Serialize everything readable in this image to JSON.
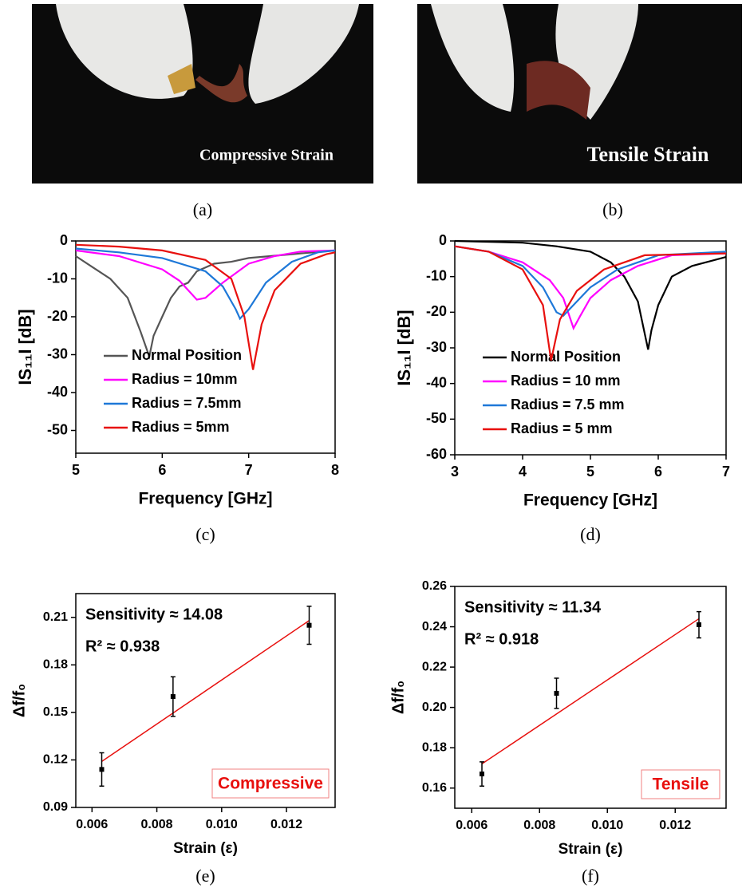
{
  "photos": [
    {
      "label": "Compressive Strain",
      "caption": "(a)"
    },
    {
      "label": "Tensile Strain",
      "caption": "(b)"
    }
  ],
  "chart_data": [
    {
      "type": "line",
      "caption": "(c)",
      "xlabel": "Frequency [GHz]",
      "ylabel": "IS₁₁I [dB]",
      "xlim": [
        5,
        8
      ],
      "xticks": [
        5,
        6,
        7,
        8
      ],
      "ylim": [
        -56,
        0
      ],
      "yticks": [
        0,
        -10,
        -20,
        -30,
        -40,
        -50
      ],
      "legend": "lower left",
      "series": [
        {
          "name": "Normal Position",
          "color": "#555555",
          "x": [
            5,
            5.2,
            5.4,
            5.6,
            5.75,
            5.85,
            5.9,
            6.0,
            6.1,
            6.2,
            6.3,
            6.4,
            6.6,
            6.8,
            7.0,
            7.5,
            8
          ],
          "values": [
            -4,
            -7,
            -10,
            -15,
            -24,
            -30.5,
            -25,
            -20,
            -15,
            -12,
            -11,
            -8,
            -6,
            -5.5,
            -4.5,
            -3.5,
            -2.5
          ]
        },
        {
          "name": "Radius = 10mm",
          "color": "#ff00ff",
          "x": [
            5,
            5.5,
            6.0,
            6.2,
            6.4,
            6.5,
            6.7,
            7.0,
            7.3,
            7.6,
            8
          ],
          "values": [
            -2.5,
            -4,
            -7.5,
            -10.5,
            -15.5,
            -15,
            -11,
            -6,
            -4,
            -2.8,
            -2.5
          ]
        },
        {
          "name": "Radius = 7.5mm",
          "color": "#1e78d8",
          "x": [
            5,
            5.5,
            6.0,
            6.5,
            6.7,
            6.85,
            6.9,
            7.0,
            7.2,
            7.5,
            7.8,
            8
          ],
          "values": [
            -2,
            -3,
            -4.5,
            -8,
            -12,
            -18,
            -20.5,
            -18,
            -11,
            -5.5,
            -3,
            -2.5
          ]
        },
        {
          "name": "Radius = 5mm",
          "color": "#e8100e",
          "x": [
            5,
            5.5,
            6.0,
            6.5,
            6.8,
            6.95,
            7.05,
            7.15,
            7.3,
            7.6,
            7.9,
            8
          ],
          "values": [
            -1,
            -1.5,
            -2.5,
            -5,
            -10,
            -20,
            -34,
            -22,
            -13,
            -6,
            -3.5,
            -3
          ]
        }
      ]
    },
    {
      "type": "line",
      "caption": "(d)",
      "xlabel": "Frequency [GHz]",
      "ylabel": "IS₁₁I [dB]",
      "xlim": [
        3,
        7
      ],
      "xticks": [
        3,
        4,
        5,
        6,
        7
      ],
      "ylim": [
        -60,
        0
      ],
      "yticks": [
        0,
        -10,
        -20,
        -30,
        -40,
        -50,
        -60
      ],
      "legend": "lower left",
      "series": [
        {
          "name": "Normal Position",
          "color": "#000000",
          "x": [
            3,
            4,
            4.5,
            5.0,
            5.3,
            5.5,
            5.7,
            5.85,
            5.9,
            6.0,
            6.2,
            6.5,
            7
          ],
          "values": [
            0,
            -0.5,
            -1.5,
            -3,
            -6,
            -10,
            -17,
            -30.5,
            -25,
            -18,
            -10,
            -7,
            -4.5
          ]
        },
        {
          "name": "Radius = 10 mm",
          "color": "#ff00ff",
          "x": [
            3,
            3.5,
            4.0,
            4.4,
            4.6,
            4.75,
            4.85,
            5.0,
            5.3,
            5.7,
            6.2,
            7
          ],
          "values": [
            -1.5,
            -3,
            -6,
            -11,
            -16,
            -24.5,
            -21,
            -16,
            -11,
            -7,
            -4,
            -3.5
          ]
        },
        {
          "name": "Radius = 7.5 mm",
          "color": "#1e78d8",
          "x": [
            3,
            3.5,
            4.0,
            4.3,
            4.5,
            4.6,
            4.8,
            5.0,
            5.4,
            6.0,
            7
          ],
          "values": [
            -1.5,
            -3,
            -7,
            -13,
            -20,
            -21,
            -17,
            -13,
            -8,
            -4,
            -3
          ]
        },
        {
          "name": "Radius = 5 mm",
          "color": "#e8100e",
          "x": [
            3,
            3.5,
            4.0,
            4.3,
            4.42,
            4.55,
            4.8,
            5.2,
            5.8,
            7
          ],
          "values": [
            -1.5,
            -3,
            -8,
            -18,
            -33.5,
            -22,
            -14,
            -8,
            -4,
            -3.5
          ]
        }
      ]
    },
    {
      "type": "scatter",
      "caption": "(e)",
      "xlabel": "Strain (ε)",
      "ylabel": "Δf/f₀",
      "xlim": [
        0.0055,
        0.0135
      ],
      "xticks": [
        {
          "value": 0.006,
          "label": "0.006"
        },
        {
          "value": 0.008,
          "label": "0.008"
        },
        {
          "value": 0.01,
          "label": "0.010"
        },
        {
          "value": 0.012,
          "label": "0.012"
        }
      ],
      "ylim": [
        0.09,
        0.225
      ],
      "yticks": [
        0.09,
        0.12,
        0.15,
        0.18,
        0.21
      ],
      "x": [
        0.0063,
        0.0085,
        0.0127
      ],
      "values": [
        0.114,
        0.16,
        0.205
      ],
      "errors": [
        0.0105,
        0.0125,
        0.012
      ],
      "color": "#000000",
      "fit": {
        "color": "#e8100e",
        "x": [
          0.0063,
          0.0127
        ],
        "values": [
          0.119,
          0.208
        ]
      },
      "annotations": [
        "Sensitivity ≈ 14.08",
        "R² ≈ 0.938"
      ],
      "tag": "Compressive"
    },
    {
      "type": "scatter",
      "caption": "(f)",
      "xlabel": "Strain (ε)",
      "ylabel": "Δf/f₀",
      "xlim": [
        0.0055,
        0.0135
      ],
      "xticks": [
        {
          "value": 0.006,
          "label": "0.006"
        },
        {
          "value": 0.008,
          "label": "0.008"
        },
        {
          "value": 0.01,
          "label": "0.010"
        },
        {
          "value": 0.012,
          "label": "0.012"
        }
      ],
      "ylim": [
        0.15,
        0.26
      ],
      "yticks": [
        0.16,
        0.18,
        {
          "value": 0.2,
          "label": "0.20"
        },
        0.22,
        0.24,
        0.26
      ],
      "x": [
        0.0063,
        0.0085,
        0.0127
      ],
      "values": [
        0.167,
        0.207,
        0.241
      ],
      "errors": [
        0.006,
        0.0075,
        0.0065
      ],
      "color": "#000000",
      "fit": {
        "color": "#e8100e",
        "x": [
          0.0063,
          0.0127
        ],
        "values": [
          0.172,
          0.244
        ]
      },
      "annotations": [
        "Sensitivity ≈ 11.34",
        "R² ≈ 0.918"
      ],
      "tag": "Tensile"
    }
  ]
}
